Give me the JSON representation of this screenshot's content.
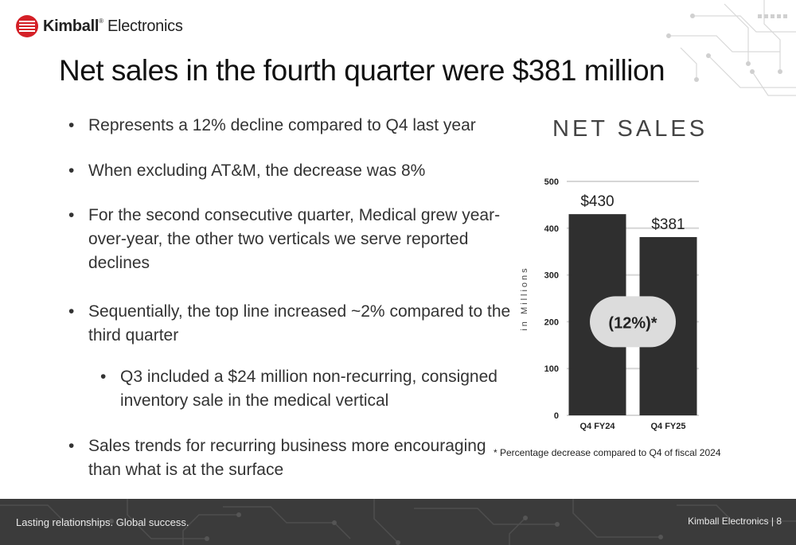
{
  "brand": {
    "name_bold": "Kimball",
    "name_light": "Electronics",
    "trademark": "®",
    "color": "#d42027"
  },
  "slide": {
    "title": "Net sales in the fourth quarter were $381 million",
    "bullets": [
      {
        "text": "Represents a 12% decline compared to Q4 last year",
        "level": 1
      },
      {
        "text": "When excluding AT&M, the decrease was 8%",
        "level": 1
      },
      {
        "text": "For the second consecutive quarter, Medical grew year-over-year, the other two verticals we serve reported declines",
        "level": 1
      },
      {
        "text": "Sequentially, the top line increased ~2% compared to the third quarter",
        "level": 1
      },
      {
        "text": "Q3 included a $24 million non-recurring, consigned inventory sale in the medical vertical",
        "level": 2
      },
      {
        "text": "Sales trends for recurring business more encouraging than what is at the surface",
        "level": 1
      }
    ],
    "footnote": "* Percentage decrease compared to Q4 of fiscal 2024"
  },
  "chart_data": {
    "type": "bar",
    "title": "NET SALES",
    "ylabel": "in Millions",
    "categories": [
      "Q4 FY24",
      "Q4 FY25"
    ],
    "values": [
      430,
      381
    ],
    "data_labels": [
      "$430",
      "$381"
    ],
    "ylim": [
      0,
      500
    ],
    "yticks": [
      0,
      100,
      200,
      300,
      400,
      500
    ],
    "grid": true,
    "bar_color": "#2f2f2f",
    "annotation": {
      "text": "(12%)*",
      "y": 200
    }
  },
  "footer": {
    "tagline": "Lasting relationships. Global success.",
    "company": "Kimball Electronics",
    "separator": "|",
    "page_number": "8",
    "background": "#3b3b3b"
  }
}
